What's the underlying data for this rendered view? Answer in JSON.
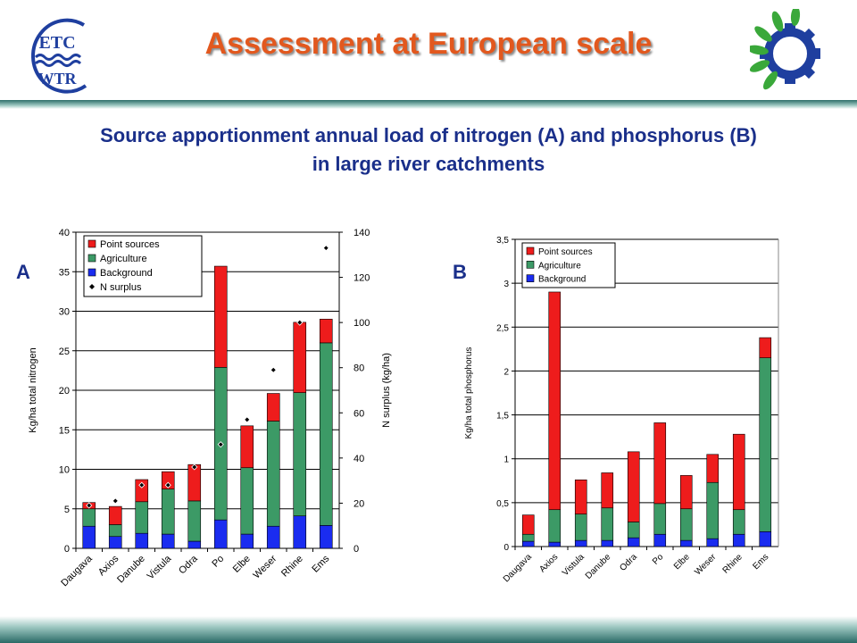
{
  "header": {
    "title": "Assessment at European scale",
    "logo_left_text": [
      "ETC",
      "WTR"
    ]
  },
  "subtitle": {
    "line1": "Source apportionment annual load of nitrogen (A) and phosphorus (B)",
    "line2": "in large river catchments"
  },
  "colors": {
    "point_sources": "#ee1c1c",
    "agriculture": "#3c9a66",
    "background": "#1a2cf0",
    "title": "#e2581e",
    "subtitle": "#1a2f8a"
  },
  "chart_data": [
    {
      "type": "bar",
      "stacked": true,
      "panel_label": "A",
      "categories": [
        "Daugava",
        "Axios",
        "Danube",
        "Vistula",
        "Odra",
        "Po",
        "Elbe",
        "Weser",
        "Rhine",
        "Ems"
      ],
      "series": [
        {
          "name": "Point sources",
          "values": [
            0.8,
            2.3,
            2.8,
            2.2,
            4.6,
            12.8,
            5.3,
            3.5,
            8.9,
            3.0
          ]
        },
        {
          "name": "Agriculture",
          "values": [
            2.2,
            1.5,
            4.0,
            5.7,
            5.1,
            19.3,
            8.4,
            13.3,
            15.6,
            23.1
          ]
        },
        {
          "name": "Background",
          "values": [
            2.8,
            1.5,
            1.9,
            1.8,
            0.9,
            3.6,
            1.8,
            2.8,
            4.1,
            2.9
          ]
        }
      ],
      "secondary_series": {
        "name": "N surplus",
        "values": [
          19,
          21,
          28,
          28,
          36,
          46,
          57,
          79,
          100,
          133
        ]
      },
      "ylabel": "Kg/ha total nitrogen",
      "y2label": "N surplus (kg/ha)",
      "ylim": [
        0,
        40
      ],
      "y2lim": [
        0,
        140
      ],
      "yticks": [
        "0",
        "5",
        "10",
        "15",
        "20",
        "25",
        "30",
        "35",
        "40"
      ],
      "y2ticks": [
        "0",
        "20",
        "40",
        "60",
        "80",
        "100",
        "120",
        "140"
      ],
      "legend": "top-left",
      "grid": true
    },
    {
      "type": "bar",
      "stacked": true,
      "panel_label": "B",
      "categories": [
        "Daugava",
        "Axios",
        "Vistula",
        "Danube",
        "Odra",
        "Po",
        "Elbe",
        "Weser",
        "Rhine",
        "Ems"
      ],
      "series": [
        {
          "name": "Point sources",
          "values": [
            0.22,
            2.48,
            0.39,
            0.4,
            0.8,
            0.92,
            0.38,
            0.32,
            0.86,
            0.23
          ]
        },
        {
          "name": "Agriculture",
          "values": [
            0.08,
            0.37,
            0.3,
            0.37,
            0.18,
            0.35,
            0.36,
            0.64,
            0.28,
            1.98
          ]
        },
        {
          "name": "Background",
          "values": [
            0.06,
            0.05,
            0.07,
            0.07,
            0.1,
            0.14,
            0.07,
            0.09,
            0.14,
            0.17
          ]
        }
      ],
      "ylabel": "Kg/ha total phosphorus",
      "ylim": [
        0,
        3.5
      ],
      "yticks": [
        "0",
        "0,5",
        "1",
        "1,5",
        "2",
        "2,5",
        "3",
        "3,5"
      ],
      "legend": "top-left",
      "grid": true
    }
  ]
}
